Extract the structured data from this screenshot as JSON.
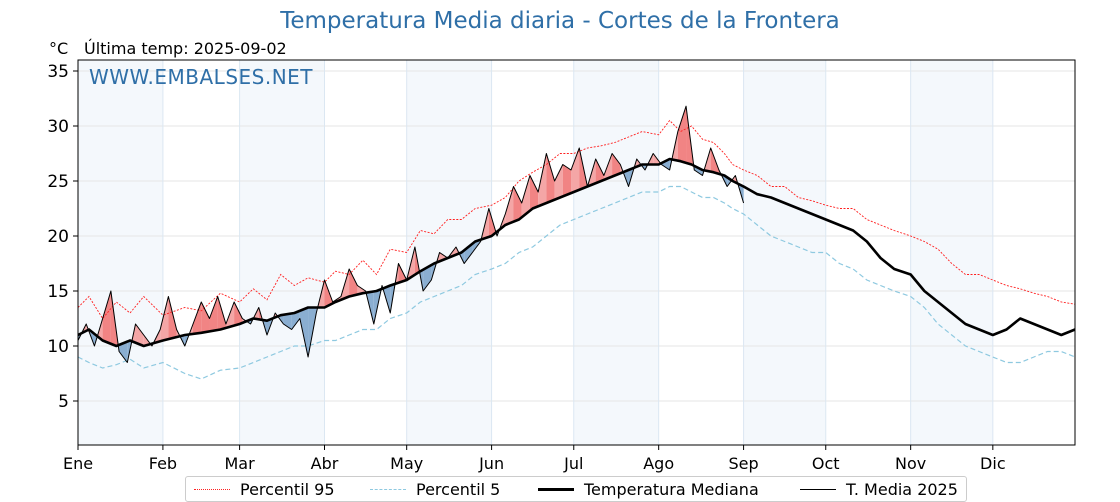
{
  "header": {
    "title": "Temperatura Media diaria - Cortes de la Frontera",
    "unit": "°C",
    "last_temp": "Última temp: 2025-09-02",
    "watermark": "WWW.EMBALSES.NET"
  },
  "legend": {
    "p95": "Percentil 95",
    "p5": "Percentil 5",
    "median": "Temperatura Mediana",
    "current": "T. Media 2025"
  },
  "colors": {
    "title": "#2f6fa7",
    "p95": "#ff2020",
    "p5": "#8ec9e0",
    "median": "#000000",
    "above_fill": "#f4a6a6",
    "above_strong": "#ee5a5a",
    "below_fill": "#8aaed1",
    "month_band": "#f4f8fc",
    "grid": "#e6e6e6"
  },
  "chart_data": {
    "type": "line",
    "title": "Temperatura Media diaria - Cortes de la Frontera",
    "ylabel": "°C",
    "ylim": [
      1,
      36
    ],
    "xlim": [
      1,
      365
    ],
    "yticks": [
      5,
      10,
      15,
      20,
      25,
      30,
      35
    ],
    "grid": true,
    "legend_placement": "bottom",
    "months": [
      "Ene",
      "Feb",
      "Mar",
      "Abr",
      "May",
      "Jun",
      "Jul",
      "Ago",
      "Sep",
      "Oct",
      "Nov",
      "Dic"
    ],
    "month_start_days": [
      1,
      32,
      60,
      91,
      121,
      152,
      182,
      213,
      244,
      274,
      305,
      335
    ],
    "series": [
      {
        "name": "Percentil 95",
        "style": "dotted",
        "x": [
          1,
          5,
          10,
          15,
          20,
          25,
          32,
          40,
          46,
          53,
          60,
          65,
          70,
          75,
          80,
          85,
          91,
          95,
          100,
          105,
          110,
          115,
          121,
          126,
          131,
          136,
          141,
          146,
          152,
          157,
          162,
          167,
          172,
          177,
          182,
          187,
          192,
          197,
          202,
          207,
          213,
          217,
          221,
          225,
          229,
          233,
          237,
          240,
          244,
          249,
          254,
          259,
          264,
          269,
          274,
          279,
          284,
          289,
          294,
          299,
          305,
          310,
          315,
          320,
          325,
          330,
          335,
          340,
          345,
          350,
          355,
          360,
          365
        ],
        "y": [
          13.5,
          14.5,
          12.5,
          14.0,
          13.0,
          14.5,
          12.8,
          13.5,
          13.2,
          14.8,
          14.0,
          15.2,
          14.2,
          16.5,
          15.5,
          16.2,
          15.8,
          16.8,
          16.5,
          17.8,
          16.5,
          18.8,
          18.5,
          20.5,
          20.2,
          21.5,
          21.5,
          22.5,
          22.8,
          23.5,
          25.0,
          25.8,
          26.5,
          27.5,
          27.5,
          28.0,
          28.2,
          28.5,
          29.0,
          29.5,
          29.2,
          30.5,
          29.5,
          30.0,
          28.8,
          28.5,
          27.5,
          26.5,
          26.0,
          25.5,
          24.5,
          24.5,
          23.5,
          23.2,
          22.8,
          22.5,
          22.5,
          21.5,
          21.0,
          20.5,
          20.0,
          19.5,
          18.8,
          17.5,
          16.5,
          16.5,
          16.0,
          15.5,
          15.2,
          14.8,
          14.5,
          14.0,
          13.8
        ]
      },
      {
        "name": "Percentil 5",
        "style": "dashed",
        "x": [
          1,
          5,
          10,
          15,
          20,
          25,
          32,
          40,
          46,
          53,
          60,
          65,
          70,
          75,
          80,
          85,
          91,
          95,
          100,
          105,
          110,
          115,
          121,
          126,
          131,
          136,
          141,
          146,
          152,
          157,
          162,
          167,
          172,
          177,
          182,
          187,
          192,
          197,
          202,
          207,
          213,
          217,
          221,
          225,
          229,
          233,
          237,
          240,
          244,
          249,
          254,
          259,
          264,
          269,
          274,
          279,
          284,
          289,
          294,
          299,
          305,
          310,
          315,
          320,
          325,
          330,
          335,
          340,
          345,
          350,
          355,
          360,
          365
        ],
        "y": [
          9.0,
          8.5,
          8.0,
          8.3,
          8.8,
          8.0,
          8.5,
          7.5,
          7.0,
          7.8,
          8.0,
          8.5,
          9.0,
          9.5,
          10.0,
          10.0,
          10.5,
          10.5,
          11.0,
          11.5,
          11.5,
          12.5,
          13.0,
          14.0,
          14.5,
          15.0,
          15.5,
          16.5,
          17.0,
          17.5,
          18.5,
          19.0,
          20.0,
          21.0,
          21.5,
          22.0,
          22.5,
          23.0,
          23.5,
          24.0,
          24.0,
          24.5,
          24.5,
          24.0,
          23.5,
          23.5,
          23.0,
          22.5,
          22.0,
          21.0,
          20.0,
          19.5,
          19.0,
          18.5,
          18.5,
          17.5,
          17.0,
          16.0,
          15.5,
          15.0,
          14.5,
          13.5,
          12.0,
          11.0,
          10.0,
          9.5,
          9.0,
          8.5,
          8.5,
          9.0,
          9.5,
          9.5,
          9.0
        ]
      },
      {
        "name": "Temperatura Mediana",
        "style": "thick",
        "x": [
          1,
          5,
          10,
          15,
          20,
          25,
          32,
          40,
          46,
          53,
          60,
          65,
          70,
          75,
          80,
          85,
          91,
          95,
          100,
          105,
          110,
          115,
          121,
          126,
          131,
          136,
          141,
          146,
          152,
          157,
          162,
          167,
          172,
          177,
          182,
          187,
          192,
          197,
          202,
          207,
          213,
          217,
          221,
          225,
          229,
          233,
          237,
          240,
          244,
          249,
          254,
          259,
          264,
          269,
          274,
          279,
          284,
          289,
          294,
          299,
          305,
          310,
          315,
          320,
          325,
          330,
          335,
          340,
          345,
          350,
          355,
          360,
          365
        ],
        "y": [
          11.0,
          11.5,
          10.5,
          10.0,
          10.5,
          10.0,
          10.5,
          11.0,
          11.2,
          11.5,
          12.0,
          12.5,
          12.3,
          12.8,
          13.0,
          13.5,
          13.5,
          14.0,
          14.5,
          14.8,
          15.0,
          15.5,
          16.0,
          16.8,
          17.5,
          18.0,
          18.5,
          19.5,
          20.0,
          21.0,
          21.5,
          22.5,
          23.0,
          23.5,
          24.0,
          24.5,
          25.0,
          25.5,
          26.0,
          26.5,
          26.5,
          27.0,
          26.8,
          26.5,
          26.0,
          25.8,
          25.5,
          25.0,
          24.5,
          23.8,
          23.5,
          23.0,
          22.5,
          22.0,
          21.5,
          21.0,
          20.5,
          19.5,
          18.0,
          17.0,
          16.5,
          15.0,
          14.0,
          13.0,
          12.0,
          11.5,
          11.0,
          11.5,
          12.5,
          12.0,
          11.5,
          11.0,
          11.5
        ]
      },
      {
        "name": "T. Media 2025",
        "style": "thin",
        "x": [
          1,
          4,
          7,
          10,
          13,
          16,
          19,
          22,
          25,
          28,
          31,
          34,
          37,
          40,
          43,
          46,
          49,
          52,
          55,
          58,
          61,
          64,
          67,
          70,
          73,
          76,
          79,
          82,
          85,
          88,
          91,
          94,
          97,
          100,
          103,
          106,
          109,
          112,
          115,
          118,
          121,
          124,
          127,
          130,
          133,
          136,
          139,
          142,
          145,
          148,
          151,
          154,
          157,
          160,
          163,
          166,
          169,
          172,
          175,
          178,
          181,
          184,
          187,
          190,
          193,
          196,
          199,
          202,
          205,
          208,
          211,
          214,
          217,
          220,
          223,
          226,
          229,
          232,
          235,
          238,
          241,
          244
        ],
        "y": [
          10.5,
          12.0,
          10.0,
          12.5,
          15.0,
          9.5,
          8.5,
          12.0,
          11.0,
          10.0,
          11.5,
          14.5,
          11.5,
          10.0,
          12.0,
          14.0,
          12.5,
          14.5,
          12.0,
          14.0,
          12.5,
          12.0,
          13.5,
          11.0,
          13.0,
          12.0,
          11.5,
          12.5,
          9.0,
          13.0,
          16.0,
          14.0,
          14.5,
          17.0,
          15.5,
          15.0,
          12.0,
          15.5,
          13.0,
          17.5,
          16.0,
          19.0,
          15.0,
          16.0,
          18.5,
          18.0,
          19.0,
          17.5,
          18.5,
          19.5,
          22.5,
          20.0,
          22.0,
          24.5,
          23.0,
          25.5,
          24.0,
          27.5,
          25.0,
          26.5,
          26.0,
          28.0,
          24.5,
          27.0,
          25.5,
          27.5,
          26.5,
          24.5,
          27.0,
          26.0,
          27.5,
          26.5,
          26.0,
          29.5,
          31.8,
          26.0,
          25.5,
          28.0,
          26.0,
          24.5,
          25.5,
          23.0
        ]
      }
    ]
  }
}
